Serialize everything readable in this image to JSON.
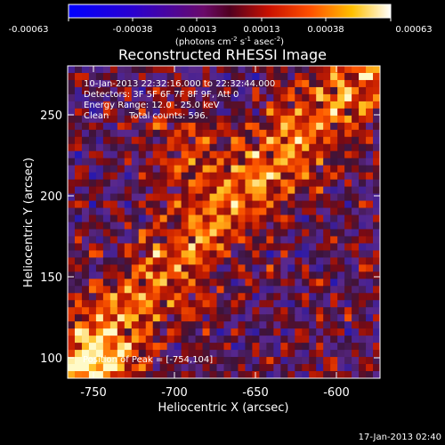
{
  "colorbar": {
    "ticks": [
      "-0.00063",
      "-0.00038",
      "-0.00013",
      "0.00013",
      "0.00038",
      "0.00063"
    ],
    "units_prefix": "(photons cm",
    "units_exp1": "-2",
    "units_mid": " s",
    "units_exp2": "-1",
    "units_mid2": " asec",
    "units_exp3": "-2",
    "units_suffix": ")"
  },
  "title": "Reconstructed RHESSI Image",
  "info": {
    "time_range": "10-Jan-2013 22:32:16.000 to 22:32:44.000",
    "detectors": "Detectors: 3F 5F 6F 7F 8F 9F, Att 0",
    "energy": "Energy Range: 12.0 - 25.0 keV",
    "method": "Clean",
    "counts": "Total counts: 596.",
    "peak": "Position of Peak = [-754,104]"
  },
  "axes": {
    "xlabel": "Heliocentric X (arcsec)",
    "ylabel": "Heliocentric Y (arcsec)",
    "xticks": [
      "-750",
      "-700",
      "-650",
      "-600"
    ],
    "yticks": [
      "100",
      "150",
      "200",
      "250"
    ]
  },
  "footer_date": "17-Jan-2013 02:40",
  "colors": {
    "background": "#000000",
    "negative": "#1a1aff",
    "zero": "#5a2a8a",
    "mid": "#e03000",
    "high": "#ffd040",
    "max": "#ffffff"
  }
}
